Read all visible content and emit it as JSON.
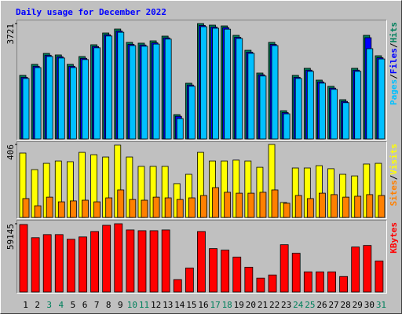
{
  "chart_data": {
    "type": "bar",
    "title": "Daily usage for December 2022",
    "categories": [
      "1",
      "2",
      "3",
      "4",
      "5",
      "6",
      "7",
      "8",
      "9",
      "10",
      "11",
      "12",
      "13",
      "14",
      "15",
      "16",
      "17",
      "18",
      "19",
      "20",
      "21",
      "22",
      "23",
      "24",
      "25",
      "26",
      "27",
      "28",
      "29",
      "30",
      "31"
    ],
    "category_colors": [
      "#000000",
      "#000000",
      "#00805c",
      "#00805c",
      "#000000",
      "#000000",
      "#000000",
      "#000000",
      "#000000",
      "#00805c",
      "#00805c",
      "#000000",
      "#000000",
      "#000000",
      "#000000",
      "#000000",
      "#00805c",
      "#00805c",
      "#000000",
      "#000000",
      "#000000",
      "#000000",
      "#000000",
      "#00805c",
      "#00805c",
      "#000000",
      "#000000",
      "#000000",
      "#000000",
      "#000000",
      "#00805c"
    ],
    "legend_separator": "/",
    "panels": [
      {
        "ylim": [
          0,
          3721
        ],
        "yticks": [
          3721
        ],
        "series": [
          {
            "name": "Hits",
            "color": "#00805c",
            "values": [
              2050,
              2405,
              2759,
              2709,
              2405,
              2658,
              3038,
              3417,
              3544,
              3114,
              3089,
              3164,
              3316,
              785,
              1797,
              3721,
              3670,
              3645,
              3341,
              2860,
              2126,
              3114,
              911,
              2050,
              2278,
              1898,
              1696,
              1266,
              2278,
              3341,
              2683
            ]
          },
          {
            "name": "Files",
            "color": "#0000ff",
            "values": [
              1990,
              2345,
              2700,
              2650,
              2345,
              2600,
              2980,
              3360,
              3480,
              3050,
              3030,
              3100,
              3260,
              730,
              1740,
              3660,
              3610,
              3590,
              3280,
              2800,
              2070,
              3050,
              850,
              1990,
              2220,
              1840,
              1640,
              1210,
              2220,
              3265,
              2620
            ]
          },
          {
            "name": "Pages",
            "color": "#00c0ff",
            "values": [
              1950,
              2300,
              2660,
              2610,
              2300,
              2560,
              2940,
              3320,
              3440,
              3010,
              2990,
              3060,
              3220,
              658,
              1700,
              3620,
              3570,
              3540,
              3240,
              2760,
              2030,
              3010,
              810,
              1950,
              2180,
              1800,
              1600,
              1170,
              2180,
              2911,
              2580
            ]
          }
        ]
      },
      {
        "ylim": [
          0,
          406
        ],
        "yticks": [
          406
        ],
        "series": [
          {
            "name": "Visits",
            "color": "#ffff00",
            "values": [
              358,
              266,
              301,
              314,
              310,
              362,
              349,
              336,
              402,
              336,
              284,
              284,
              284,
              188,
              240,
              362,
              314,
              314,
              319,
              314,
              279,
              406,
              83,
              275,
              275,
              288,
              271,
              240,
              231,
              297,
              301
            ]
          },
          {
            "name": "Sites",
            "color": "#ff8000",
            "values": [
              105,
              65,
              113,
              87,
              92,
              96,
              87,
              109,
              153,
              100,
              96,
              113,
              109,
              100,
              109,
              122,
              166,
              140,
              135,
              135,
              140,
              153,
              79,
              122,
              105,
              135,
              127,
              113,
              118,
              127,
              122
            ]
          }
        ]
      },
      {
        "ylim": [
          0,
          59145
        ],
        "yticks": [
          59145
        ],
        "series": [
          {
            "name": "KBytes",
            "color": "#ff0000",
            "values": [
              58470,
              47050,
              49730,
              49730,
              45700,
              47720,
              52420,
              57800,
              59145,
              53760,
              53090,
              53090,
              53760,
              10750,
              20840,
              52420,
              37640,
              36290,
              30240,
              21510,
              12100,
              14790,
              41000,
              33600,
              17470,
              17470,
              17470,
              13440,
              38980,
              40330,
              26880
            ]
          }
        ]
      }
    ]
  }
}
